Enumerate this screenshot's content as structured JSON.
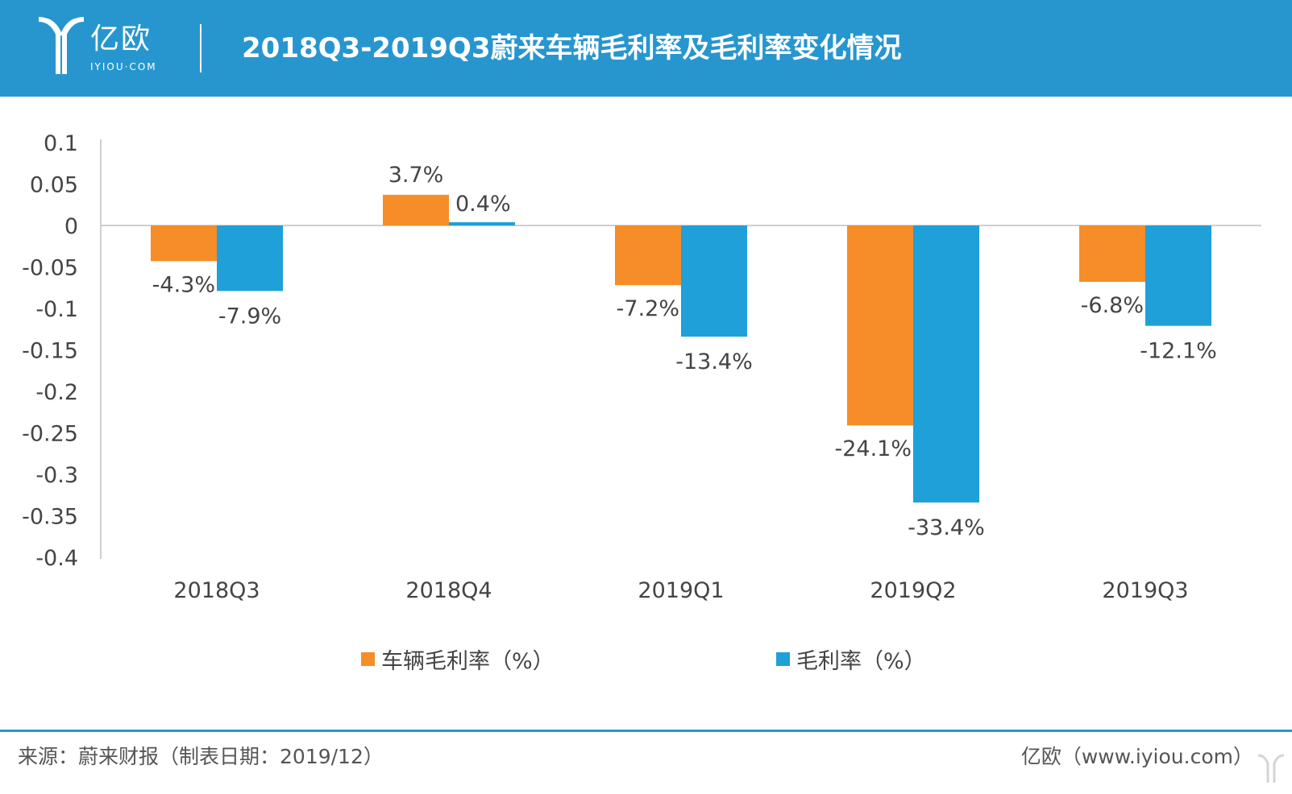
{
  "header": {
    "logo_text": "亿欧",
    "logo_sub": "IYIOU·COM",
    "title": "2018Q3-2019Q3蔚来车辆毛利率及毛利率变化情况"
  },
  "colors": {
    "header_bg": "#2796cf",
    "series_vehicle": "#f68d28",
    "series_gross": "#1fa0d8",
    "axis": "#bfbfbf"
  },
  "chart_data": {
    "type": "bar",
    "categories": [
      "2018Q3",
      "2018Q4",
      "2019Q1",
      "2019Q2",
      "2019Q3"
    ],
    "series": [
      {
        "name": "车辆毛利率（%）",
        "values": [
          -0.043,
          0.037,
          -0.072,
          -0.241,
          -0.068
        ],
        "labels": [
          "-4.3%",
          "3.7%",
          "-7.2%",
          "-24.1%",
          "-6.8%"
        ],
        "color": "#f68d28"
      },
      {
        "name": "毛利率（%）",
        "values": [
          -0.079,
          0.004,
          -0.134,
          -0.334,
          -0.121
        ],
        "labels": [
          "-7.9%",
          "0.4%",
          "-13.4%",
          "-33.4%",
          "-12.1%"
        ],
        "color": "#1fa0d8"
      }
    ],
    "ylim": [
      -0.4,
      0.1
    ],
    "yticks": [
      "0.1",
      "0.05",
      "0",
      "-0.05",
      "-0.1",
      "-0.15",
      "-0.2",
      "-0.25",
      "-0.3",
      "-0.35",
      "-0.4"
    ],
    "ytick_values": [
      0.1,
      0.05,
      0,
      -0.05,
      -0.1,
      -0.15,
      -0.2,
      -0.25,
      -0.3,
      -0.35,
      -0.4
    ],
    "legend_position": "bottom",
    "grid": false
  },
  "footer": {
    "source": "来源：蔚来财报（制表日期：2019/12）",
    "site": "亿欧（www.iyiou.com）"
  }
}
